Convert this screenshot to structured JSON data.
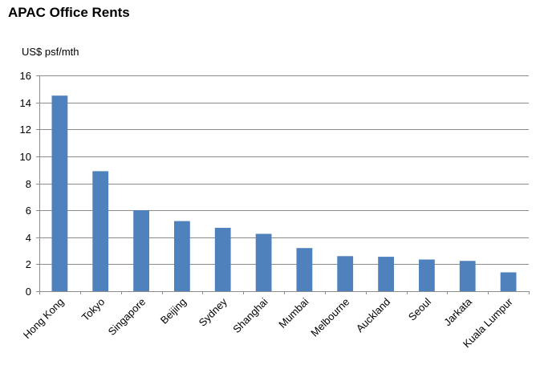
{
  "chart_data": {
    "type": "bar",
    "title": "APAC Office Rents",
    "ylabel": "US$ psf/mth",
    "xlabel": "",
    "ylim": [
      0,
      16
    ],
    "yticks": [
      0,
      2,
      4,
      6,
      8,
      10,
      12,
      14,
      16
    ],
    "grid": true,
    "bar_color": "#4f81bd",
    "grid_color": "#8c8c8c",
    "categories": [
      "Hong Kong",
      "Tokyo",
      "Singapore",
      "Beijing",
      "Sydney",
      "Shanghai",
      "Mumbai",
      "Melbourne",
      "Auckland",
      "Seoul",
      "Jarkata",
      "Kuala Lumpur"
    ],
    "values": [
      14.5,
      8.9,
      6.0,
      5.2,
      4.7,
      4.25,
      3.2,
      2.6,
      2.55,
      2.35,
      2.25,
      1.4
    ]
  }
}
